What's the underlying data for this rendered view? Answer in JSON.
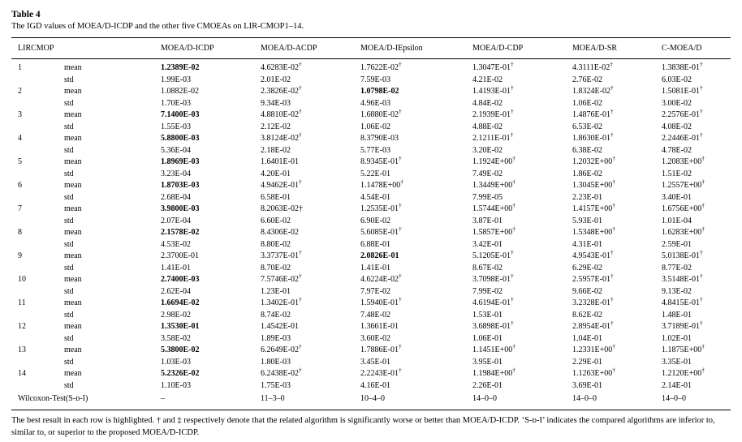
{
  "page": {
    "label": "Table 4",
    "caption": "The IGD values of MOEA/D-ICDP and the other five CMOEAs on LIR-CMOP1–14.",
    "footnote": "The best result in each row is highlighted. † and ‡ respectively denote that the related algorithm is significantly worse or better than MOEA/D-ICDP. ‘S-ᴅ-I’ indicates the compared algorithms are inferior to, similar to, or superior to the proposed MOEA/D-ICDP."
  },
  "table": {
    "columns": [
      "LIRCMOP",
      "",
      "MOEA/D-ICDP",
      "MOEA/D-ACDP",
      "MOEA/D-IEpsilon",
      "MOEA/D-CDP",
      "MOEA/D-SR",
      "C-MOEA/D"
    ],
    "stat_labels": [
      "mean",
      "std"
    ],
    "rows": [
      {
        "id": "1",
        "mean": [
          "*1.2389E-02",
          "4.6283E-02^†",
          "1.7622E-02^†",
          "1.3047E-01^†",
          "4.3111E-02^†",
          "1.3838E-01^†"
        ],
        "std": [
          "1.99E-03",
          "2.01E-02",
          "7.59E-03",
          "4.21E-02",
          "2.76E-02",
          "6.03E-02"
        ]
      },
      {
        "id": "2",
        "mean": [
          "1.0882E-02",
          "2.3826E-02^†",
          "*1.0798E-02",
          "1.4193E-01^†",
          "1.8324E-02^†",
          "1.5081E-01^†"
        ],
        "std": [
          "1.70E-03",
          "9.34E-03",
          "4.96E-03",
          "4.84E-02",
          "1.06E-02",
          "3.00E-02"
        ]
      },
      {
        "id": "3",
        "mean": [
          "*7.1400E-03",
          "4.8810E-02^†",
          "1.6880E-02^†",
          "2.1939E-01^†",
          "1.4876E-01^†",
          "2.2576E-01^†"
        ],
        "std": [
          "1.55E-03",
          "2.12E-02",
          "1.06E-02",
          "4.88E-02",
          "6.53E-02",
          "4.08E-02"
        ]
      },
      {
        "id": "4",
        "mean": [
          "*5.8800E-03",
          "3.8124E-02^†",
          "8.3790E-03",
          "2.1211E-01^†",
          "1.8630E-01^†",
          "2.2446E-01^†"
        ],
        "std": [
          "5.36E-04",
          "2.18E-02",
          "5.77E-03",
          "3.20E-02",
          "6.38E-02",
          "4.78E-02"
        ]
      },
      {
        "id": "5",
        "mean": [
          "*1.8969E-03",
          "1.6401E-01",
          "8.9345E-01^†",
          "1.1924E+00^†",
          "1.2032E+00^†",
          "1.2083E+00^†"
        ],
        "std": [
          "3.23E-04",
          "4.20E-01",
          "5.22E-01",
          "7.49E-02",
          "1.86E-02",
          "1.51E-02"
        ]
      },
      {
        "id": "6",
        "mean": [
          "*1.8703E-03",
          "4.9462E-01^†",
          "1.1478E+00^†",
          "1.3449E+00^†",
          "1.3045E+00^†",
          "1.2557E+00^†"
        ],
        "std": [
          "2.68E-04",
          "6.58E-01",
          "4.54E-01",
          "7.99E-05",
          "2.23E-01",
          "3.40E-01"
        ]
      },
      {
        "id": "7",
        "mean": [
          "*3.9800E-03",
          "8.2063E-02†",
          "1.2535E-01^†",
          "1.5744E+00^†",
          "1.4157E+00^†",
          "1.6756E+00^†"
        ],
        "std": [
          "2.07E-04",
          "6.60E-02",
          "6.90E-02",
          "3.87E-01",
          "5.93E-01",
          "1.01E-04"
        ]
      },
      {
        "id": "8",
        "mean": [
          "*2.1578E-02",
          "8.4306E-02",
          "5.6085E-01^†",
          "1.5857E+00^†",
          "1.5348E+00^†",
          "1.6283E+00^†"
        ],
        "std": [
          "4.53E-02",
          "8.80E-02",
          "6.88E-01",
          "3.42E-01",
          "4.31E-01",
          "2.59E-01"
        ]
      },
      {
        "id": "9",
        "mean": [
          "2.3700E-01",
          "3.3737E-01^†",
          "*2.0826E-01",
          "5.1205E-01^†",
          "4.9543E-01^†",
          "5.0138E-01^†"
        ],
        "std": [
          "1.41E-01",
          "8.70E-02",
          "1.41E-01",
          "8.67E-02",
          "6.29E-02",
          "8.77E-02"
        ]
      },
      {
        "id": "10",
        "mean": [
          "*2.7400E-03",
          "7.5746E-02^†",
          "4.6224E-02^†",
          "3.7098E-01^†",
          "2.5957E-01^†",
          "3.5148E-01^†"
        ],
        "std": [
          "2.62E-04",
          "1.23E-01",
          "7.97E-02",
          "7.99E-02",
          "9.66E-02",
          "9.13E-02"
        ]
      },
      {
        "id": "11",
        "mean": [
          "*1.6694E-02",
          "1.3402E-01^†",
          "1.5940E-01^†",
          "4.6194E-01^†",
          "3.2328E-01^†",
          "4.8415E-01^†"
        ],
        "std": [
          "2.98E-02",
          "8.74E-02",
          "7.48E-02",
          "1.53E-01",
          "8.62E-02",
          "1.48E-01"
        ]
      },
      {
        "id": "12",
        "mean": [
          "*1.3530E-01",
          "1.4542E-01",
          "1.3661E-01",
          "3.6898E-01^†",
          "2.8954E-01^†",
          "3.7189E-01^†"
        ],
        "std": [
          "3.58E-02",
          "1.89E-03",
          "3.60E-02",
          "1.06E-01",
          "1.04E-01",
          "1.02E-01"
        ]
      },
      {
        "id": "13",
        "mean": [
          "*5.3800E-02",
          "6.2649E-02^†",
          "1.7886E-01^†",
          "1.1451E+00^†",
          "1.2331E+00^†",
          "1.1875E+00^†"
        ],
        "std": [
          "1.03E-03",
          "1.80E-03",
          "3.45E-01",
          "3.95E-01",
          "2.29E-01",
          "3.35E-01"
        ]
      },
      {
        "id": "14",
        "mean": [
          "*5.2326E-02",
          "6.2438E-02^†",
          "2.2243E-01^†",
          "1.1984E+00^†",
          "1.1263E+00^†",
          "1.2120E+00^†"
        ],
        "std": [
          "1.10E-03",
          "1.75E-03",
          "4.16E-01",
          "2.26E-01",
          "3.69E-01",
          "2.14E-01"
        ]
      }
    ],
    "wilcoxon": {
      "label": "Wilcoxon-Test(S-ᴅ-I)",
      "values": [
        "–",
        "11–3–0",
        "10–4–0",
        "14–0–0",
        "14–0–0",
        "14–0–0"
      ]
    }
  }
}
